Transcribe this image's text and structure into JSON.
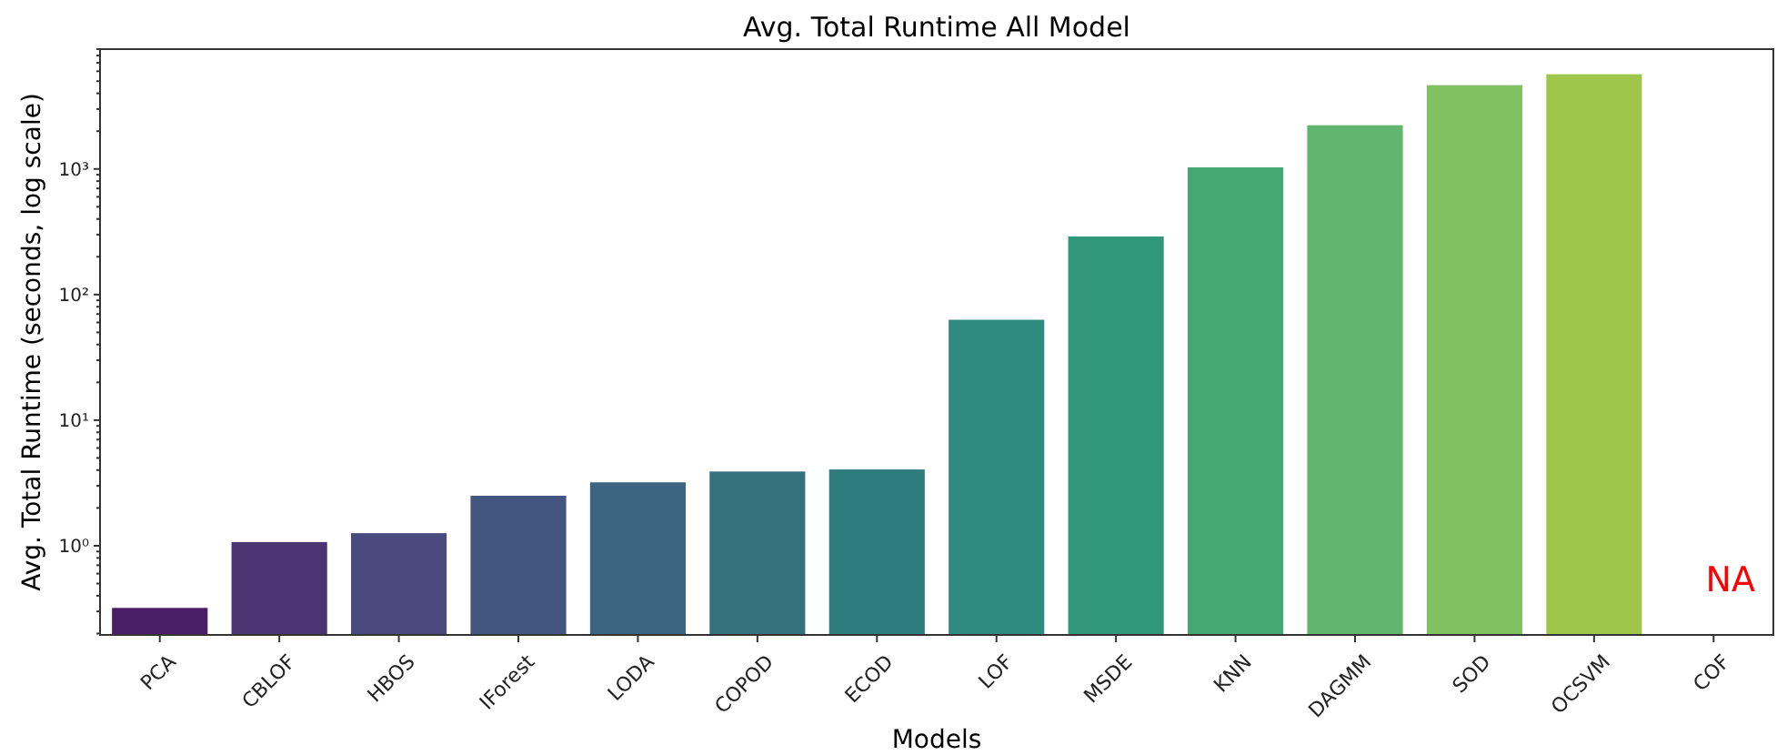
{
  "chart_data": {
    "type": "bar",
    "title": "Avg. Total Runtime All Model",
    "xlabel": "Models",
    "ylabel": "Avg. Total Runtime (seconds, log scale)",
    "categories": [
      "PCA",
      "CBLOF",
      "HBOS",
      "IForest",
      "LODA",
      "COPOD",
      "ECOD",
      "LOF",
      "MSDE",
      "KNN",
      "DAGMM",
      "SOD",
      "OCSVM",
      "COF"
    ],
    "values": [
      0.32,
      1.07,
      1.26,
      2.5,
      3.2,
      3.9,
      4.05,
      63,
      290,
      1030,
      2230,
      4650,
      5680,
      null
    ],
    "colors": [
      "#4a1d66",
      "#4b3573",
      "#4a4a7e",
      "#43567f",
      "#3c6581",
      "#34717f",
      "#2f7c7e",
      "#2e8b7d",
      "#31977b",
      "#45a774",
      "#62b56e",
      "#80c161",
      "#9fc54b",
      null
    ],
    "log": true,
    "ylim": [
      0.195,
      9000
    ],
    "yticks": [
      {
        "value": 0.2,
        "label": null
      },
      {
        "value": 0.3,
        "label": null
      },
      {
        "value": 0.4,
        "label": null
      },
      {
        "value": 0.5,
        "label": null
      },
      {
        "value": 0.6,
        "label": null
      },
      {
        "value": 0.7,
        "label": null
      },
      {
        "value": 0.8,
        "label": null
      },
      {
        "value": 0.9,
        "label": null
      },
      {
        "value": 1,
        "label": "10⁰"
      },
      {
        "value": 2,
        "label": null
      },
      {
        "value": 3,
        "label": null
      },
      {
        "value": 4,
        "label": null
      },
      {
        "value": 5,
        "label": null
      },
      {
        "value": 6,
        "label": null
      },
      {
        "value": 7,
        "label": null
      },
      {
        "value": 8,
        "label": null
      },
      {
        "value": 9,
        "label": null
      },
      {
        "value": 10,
        "label": "10¹"
      },
      {
        "value": 20,
        "label": null
      },
      {
        "value": 30,
        "label": null
      },
      {
        "value": 40,
        "label": null
      },
      {
        "value": 50,
        "label": null
      },
      {
        "value": 60,
        "label": null
      },
      {
        "value": 70,
        "label": null
      },
      {
        "value": 80,
        "label": null
      },
      {
        "value": 90,
        "label": null
      },
      {
        "value": 100,
        "label": "10²"
      },
      {
        "value": 200,
        "label": null
      },
      {
        "value": 300,
        "label": null
      },
      {
        "value": 400,
        "label": null
      },
      {
        "value": 500,
        "label": null
      },
      {
        "value": 600,
        "label": null
      },
      {
        "value": 700,
        "label": null
      },
      {
        "value": 800,
        "label": null
      },
      {
        "value": 900,
        "label": null
      },
      {
        "value": 1000,
        "label": "10³"
      },
      {
        "value": 2000,
        "label": null
      },
      {
        "value": 3000,
        "label": null
      },
      {
        "value": 4000,
        "label": null
      },
      {
        "value": 5000,
        "label": null
      },
      {
        "value": 6000,
        "label": null
      },
      {
        "value": 7000,
        "label": null
      },
      {
        "value": 8000,
        "label": null
      },
      {
        "value": 9000,
        "label": null
      }
    ],
    "annotations": [
      "NA"
    ]
  }
}
